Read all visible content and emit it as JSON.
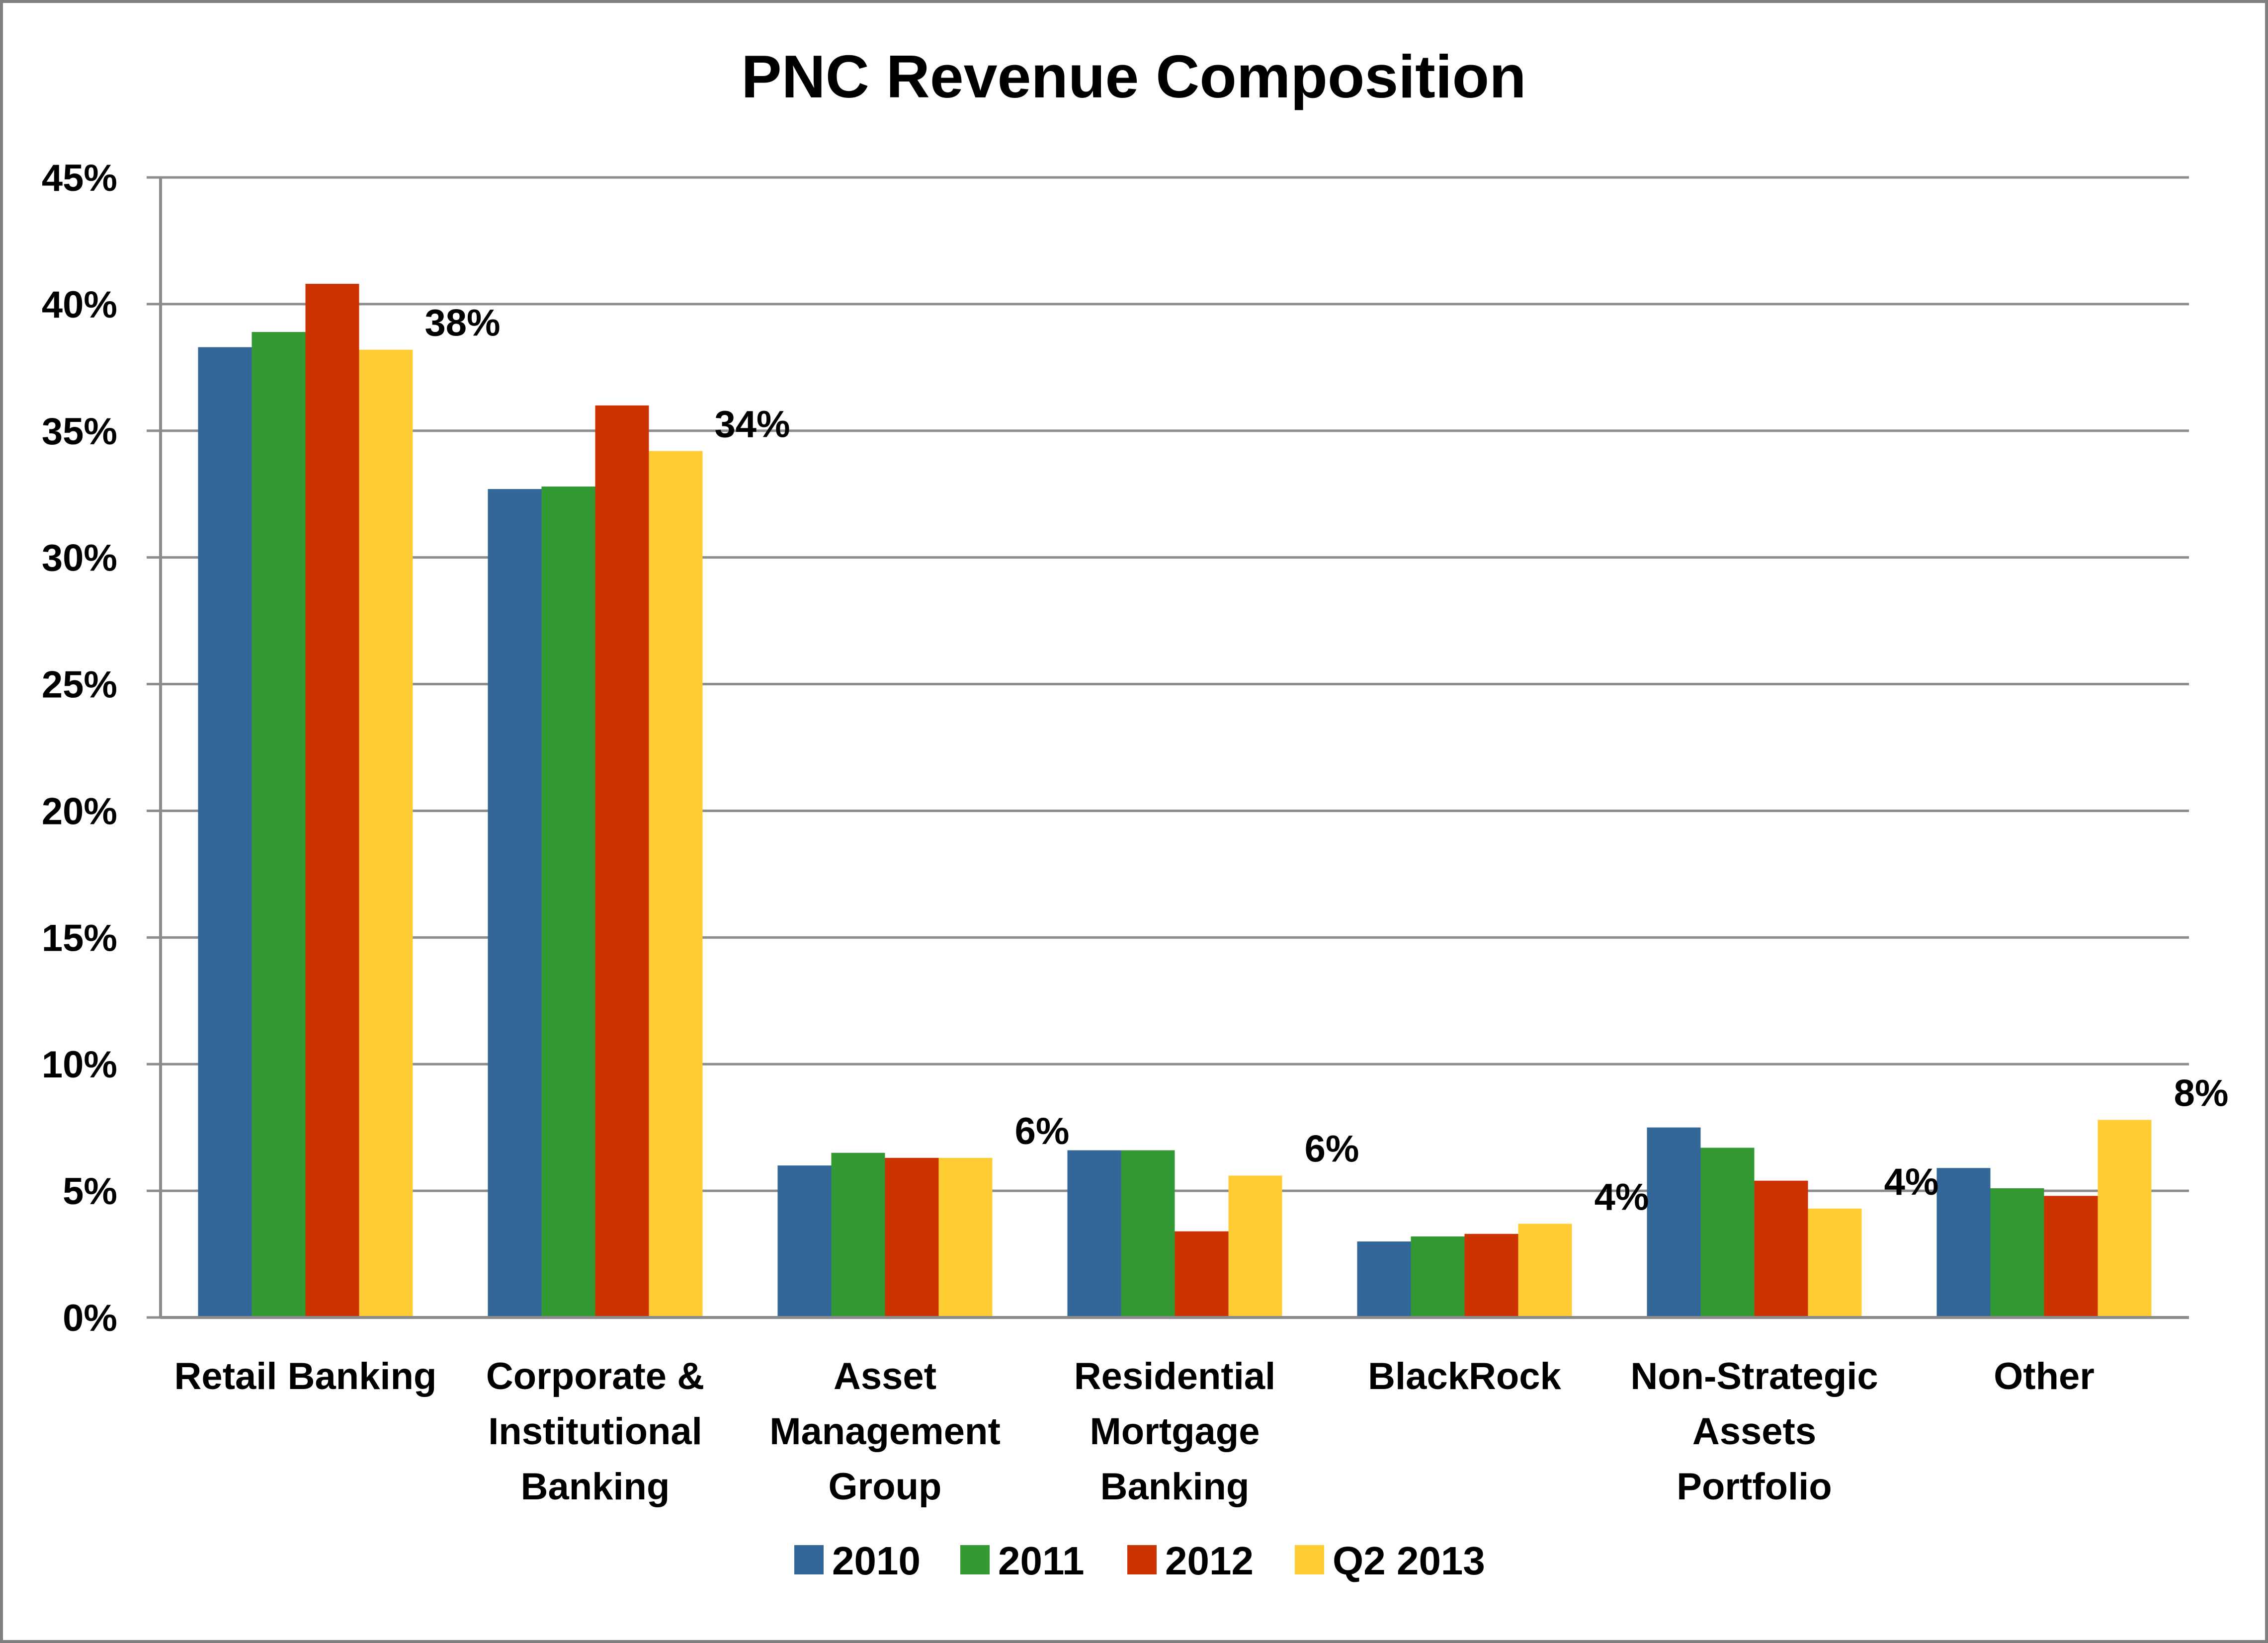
{
  "chart_data": {
    "type": "bar",
    "title": "PNC Revenue Composition",
    "xlabel": "",
    "ylabel": "",
    "ylim": [
      0,
      45
    ],
    "ytick_values": [
      0,
      5,
      10,
      15,
      20,
      25,
      30,
      35,
      40,
      45
    ],
    "ytick_labels": [
      "0%",
      "5%",
      "10%",
      "15%",
      "20%",
      "25%",
      "30%",
      "35%",
      "40%",
      "45%"
    ],
    "grid": true,
    "legend_position": "bottom",
    "categories": [
      "Retail Banking",
      "Corporate & Institutional Banking",
      "Asset Management Group",
      "Residential Mortgage Banking",
      "BlackRock",
      "Non-Strategic Assets Portfolio",
      "Other"
    ],
    "category_label_lines": [
      [
        "Retail Banking"
      ],
      [
        "Corporate &",
        "Institutional",
        "Banking"
      ],
      [
        "Asset",
        "Management",
        "Group"
      ],
      [
        "Residential",
        "Mortgage",
        "Banking"
      ],
      [
        "BlackRock"
      ],
      [
        "Non-Strategic",
        "Assets",
        "Portfolio"
      ],
      [
        "Other"
      ]
    ],
    "series": [
      {
        "name": "2010",
        "color": "#336699",
        "values": [
          38.3,
          32.7,
          6.0,
          6.6,
          3.0,
          7.5,
          5.9
        ]
      },
      {
        "name": "2011",
        "color": "#339933",
        "values": [
          38.9,
          32.8,
          6.5,
          6.6,
          3.2,
          6.7,
          5.1
        ]
      },
      {
        "name": "2012",
        "color": "#CC3300",
        "values": [
          40.8,
          36.0,
          6.3,
          3.4,
          3.3,
          5.4,
          4.8
        ]
      },
      {
        "name": "Q2 2013",
        "color": "#FFCC33",
        "values": [
          38.2,
          34.2,
          6.3,
          5.6,
          3.7,
          4.3,
          7.8
        ]
      }
    ],
    "data_labels": {
      "series": "Q2 2013",
      "labels": [
        "38%",
        "34%",
        "6%",
        "6%",
        "4%",
        "4%",
        "8%"
      ]
    }
  }
}
